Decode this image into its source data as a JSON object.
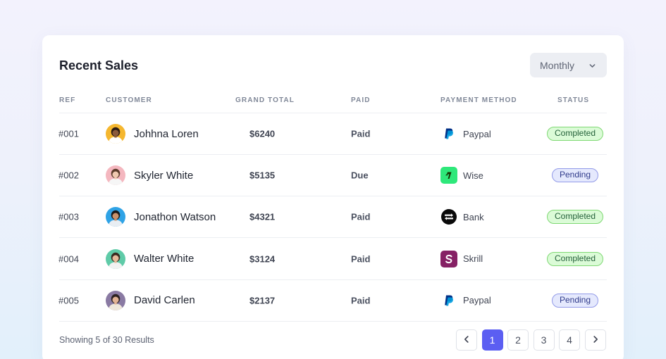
{
  "card": {
    "title": "Recent Sales",
    "period_select": {
      "value": "Monthly"
    }
  },
  "table": {
    "headers": {
      "ref": "REF",
      "customer": "CUSTOMER",
      "grand_total": "GRAND TOTAL",
      "paid": "PAID",
      "payment_method": "PAYMENT METHOD",
      "status": "STATUS"
    },
    "rows": [
      {
        "ref": "#001",
        "customer": "Johhna Loren",
        "total": "$6240",
        "paid": "Paid",
        "method": "Paypal",
        "method_icon": "paypal-icon",
        "status": "Completed",
        "status_kind": "completed",
        "avatar_bg": "#f5b72f",
        "skin": "#8a5a3c",
        "hair": "#2b1b12",
        "shirt": "#ffffff"
      },
      {
        "ref": "#002",
        "customer": "Skyler White",
        "total": "$5135",
        "paid": "Due",
        "method": "Wise",
        "method_icon": "wise-icon",
        "status": "Pending",
        "status_kind": "pending",
        "avatar_bg": "#f4b7bf",
        "skin": "#f0c9b0",
        "hair": "#5a3b2a",
        "shirt": "#f6f6f6"
      },
      {
        "ref": "#003",
        "customer": "Jonathon Watson",
        "total": "$4321",
        "paid": "Paid",
        "method": "Bank",
        "method_icon": "bank-icon",
        "status": "Completed",
        "status_kind": "completed",
        "avatar_bg": "#2fa3e6",
        "skin": "#c9926b",
        "hair": "#1b1b1b",
        "shirt": "#e9eef3"
      },
      {
        "ref": "#004",
        "customer": "Walter White",
        "total": "$3124",
        "paid": "Paid",
        "method": "Skrill",
        "method_icon": "skrill-icon",
        "status": "Completed",
        "status_kind": "completed",
        "avatar_bg": "#5fcba8",
        "skin": "#e6b99a",
        "hair": "#3a2a20",
        "shirt": "#f2f2f2"
      },
      {
        "ref": "#005",
        "customer": "David Carlen",
        "total": "$2137",
        "paid": "Paid",
        "method": "Paypal",
        "method_icon": "paypal-icon",
        "status": "Pending",
        "status_kind": "pending",
        "avatar_bg": "#8a7aa3",
        "skin": "#e2b294",
        "hair": "#2c2120",
        "shirt": "#efe6da"
      }
    ]
  },
  "footer": {
    "results_text": "Showing 5 of 30 Results",
    "pages": [
      "1",
      "2",
      "3",
      "4"
    ],
    "active_page": "1"
  },
  "colors": {
    "accent": "#5b5ef2",
    "paypal_dark": "#003087",
    "paypal_light": "#009cde",
    "wise": "#2ee87a",
    "bank": "#0a0a0a",
    "skrill": "#862165"
  }
}
